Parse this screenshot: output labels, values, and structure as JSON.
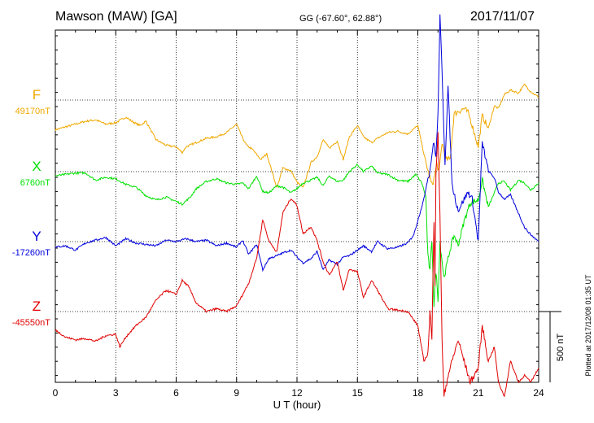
{
  "header": {
    "station": "Mawson (MAW)  [GA]",
    "coords": "GG (-67.60°,  62.88°)",
    "date": "2017/11/07"
  },
  "footer": {
    "plotted": "Plotted at 2017/12/08 01:35 UT"
  },
  "chart_data": {
    "type": "line",
    "xlabel": "U T (hour)",
    "xlim": [
      0,
      24
    ],
    "xticks": [
      "0",
      "3",
      "6",
      "9",
      "12",
      "15",
      "18",
      "21",
      "24"
    ],
    "ylabel": "",
    "grid": true,
    "scale_bar": {
      "label": "500 nT",
      "value_nT": 500
    },
    "colors": {
      "F": "#f0a800",
      "X": "#00e000",
      "Y": "#0000dd",
      "Z": "#e00000"
    },
    "series": [
      {
        "name": "F",
        "baseline_label": "49170nT",
        "baseline_nT": 49170,
        "x": [
          0,
          0.5,
          1,
          1.5,
          2,
          2.5,
          3,
          3.5,
          3.8,
          4.2,
          4.5,
          5,
          5.5,
          6,
          6.3,
          6.5,
          7,
          7.5,
          8,
          8.5,
          9,
          9.3,
          9.5,
          9.8,
          10.2,
          10.5,
          11,
          11.3,
          11.7,
          12,
          12.3,
          12.7,
          13,
          13.3,
          13.6,
          14,
          14.3,
          14.6,
          15,
          15.3,
          15.7,
          16,
          16.5,
          17,
          17.5,
          18,
          18.3,
          18.5,
          18.7,
          18.8,
          18.95,
          19.05,
          19.2,
          19.4,
          19.6,
          19.8,
          20,
          20.3,
          20.5,
          20.7,
          21,
          21.2,
          21.5,
          21.8,
          22,
          22.3,
          22.6,
          23,
          23.3,
          23.6,
          24
        ],
        "y": [
          -210,
          -190,
          -170,
          -150,
          -140,
          -170,
          -160,
          -120,
          -150,
          -180,
          -150,
          -280,
          -320,
          -330,
          -370,
          -330,
          -300,
          -270,
          -260,
          -230,
          -170,
          -270,
          -320,
          -350,
          -420,
          -380,
          -620,
          -480,
          -500,
          -580,
          -620,
          -440,
          -400,
          -280,
          -340,
          -290,
          -420,
          -260,
          -180,
          -260,
          -300,
          -270,
          -230,
          -220,
          -240,
          -180,
          -380,
          -500,
          -600,
          -560,
          -450,
          -520,
          -300,
          -420,
          -420,
          -100,
          -80,
          -60,
          -90,
          -180,
          -330,
          -110,
          -200,
          -40,
          -60,
          40,
          70,
          50,
          110,
          60,
          20
        ]
      },
      {
        "name": "X",
        "baseline_label": "6760nT",
        "baseline_nT": 6760,
        "x": [
          0,
          0.5,
          1,
          1.5,
          2,
          2.5,
          3,
          3.5,
          4,
          4.5,
          5,
          5.5,
          6,
          6.3,
          6.7,
          7,
          7.5,
          8,
          8.5,
          9,
          9.3,
          9.6,
          10,
          10.3,
          10.6,
          11,
          11.3,
          11.7,
          12,
          12.3,
          12.7,
          13,
          13.3,
          13.6,
          14,
          14.3,
          14.6,
          15,
          15.3,
          15.7,
          16,
          16.5,
          17,
          17.5,
          17.9,
          18.2,
          18.4,
          18.5,
          18.6,
          18.7,
          18.8,
          18.9,
          19.0,
          19.1,
          19.3,
          19.6,
          19.8,
          20,
          20.3,
          20.6,
          21,
          21.2,
          21.5,
          21.8,
          22,
          22.3,
          22.6,
          23,
          23.3,
          23.6,
          24
        ],
        "y": [
          -30,
          -20,
          -10,
          -10,
          -60,
          -40,
          -50,
          -90,
          -110,
          -170,
          -200,
          -180,
          -210,
          -230,
          -180,
          -120,
          -70,
          -50,
          -80,
          -90,
          -80,
          -120,
          -30,
          -140,
          -150,
          -100,
          -110,
          -150,
          -120,
          -80,
          -60,
          -40,
          -100,
          -30,
          -70,
          -60,
          0,
          50,
          0,
          40,
          -10,
          -20,
          -60,
          -70,
          -20,
          -80,
          -180,
          -600,
          -700,
          -480,
          -950,
          -700,
          -900,
          -500,
          -750,
          -550,
          -450,
          -520,
          -350,
          -220,
          -200,
          -60,
          -250,
          -150,
          -80,
          -70,
          -130,
          -60,
          -80,
          -130,
          -80
        ]
      },
      {
        "name": "Y",
        "baseline_label": "-17260nT",
        "baseline_nT": -17260,
        "x": [
          0,
          0.5,
          1,
          1.5,
          2,
          2.5,
          3,
          3.5,
          4,
          4.5,
          5,
          5.5,
          6,
          6.5,
          7,
          7.5,
          8,
          8.5,
          9,
          9.3,
          9.6,
          10,
          10.3,
          10.6,
          11,
          11.3,
          11.7,
          12,
          12.3,
          12.7,
          13,
          13.3,
          13.6,
          14,
          14.3,
          14.6,
          15,
          15.3,
          15.7,
          16,
          16.5,
          17,
          17.5,
          17.8,
          18,
          18.3,
          18.5,
          18.6,
          18.7,
          18.8,
          18.9,
          19.0,
          19.1,
          19.2,
          19.35,
          19.5,
          19.7,
          20,
          20.3,
          20.5,
          20.7,
          21,
          21.2,
          21.5,
          21.8,
          22,
          22.3,
          22.6,
          23,
          23.3,
          23.6,
          24
        ],
        "y": [
          -40,
          -30,
          -60,
          -10,
          10,
          30,
          -30,
          20,
          -10,
          -20,
          -30,
          10,
          0,
          20,
          0,
          10,
          -30,
          -10,
          -40,
          10,
          -90,
          -20,
          -200,
          -120,
          -100,
          -80,
          -60,
          -110,
          -150,
          -120,
          -70,
          -200,
          -130,
          -160,
          -110,
          -100,
          -60,
          -30,
          -70,
          0,
          -50,
          -40,
          -10,
          50,
          150,
          300,
          450,
          500,
          620,
          700,
          600,
          900,
          1600,
          1200,
          550,
          1100,
          400,
          220,
          300,
          350,
          300,
          0,
          700,
          500,
          450,
          350,
          300,
          330,
          200,
          100,
          50,
          0
        ]
      },
      {
        "name": "Z",
        "baseline_label": "-45550nT",
        "baseline_nT": -45550,
        "x": [
          0,
          0.5,
          1,
          1.5,
          2,
          2.5,
          3,
          3.2,
          3.5,
          4,
          4.5,
          5,
          5.5,
          6,
          6.3,
          6.6,
          7,
          7.5,
          8,
          8.5,
          9,
          9.3,
          9.6,
          10,
          10.3,
          10.6,
          11,
          11.3,
          11.7,
          12,
          12.3,
          12.7,
          13,
          13.3,
          13.6,
          14,
          14.3,
          14.6,
          15,
          15.3,
          15.7,
          16,
          16.5,
          17,
          17.5,
          18,
          18.3,
          18.5,
          18.6,
          18.7,
          18.8,
          18.85,
          18.9,
          19.0,
          19.1,
          19.2,
          19.3,
          19.5,
          19.8,
          20,
          20.3,
          20.6,
          21,
          21.2,
          21.5,
          21.8,
          22,
          22.3,
          22.6,
          23,
          23.3,
          23.6,
          24
        ],
        "y": [
          -130,
          -180,
          -200,
          -190,
          -210,
          -170,
          -160,
          -250,
          -180,
          -100,
          -40,
          80,
          150,
          120,
          220,
          180,
          60,
          0,
          20,
          0,
          40,
          120,
          200,
          380,
          650,
          500,
          420,
          700,
          800,
          750,
          550,
          600,
          500,
          350,
          260,
          350,
          150,
          300,
          280,
          100,
          220,
          150,
          20,
          10,
          0,
          -100,
          -350,
          -300,
          0,
          -200,
          650,
          200,
          1000,
          1250,
          700,
          -200,
          -600,
          -450,
          -300,
          -200,
          -350,
          -500,
          -400,
          -100,
          -350,
          -250,
          -500,
          -600,
          -350,
          -500,
          -450,
          -500,
          -400
        ]
      }
    ]
  }
}
